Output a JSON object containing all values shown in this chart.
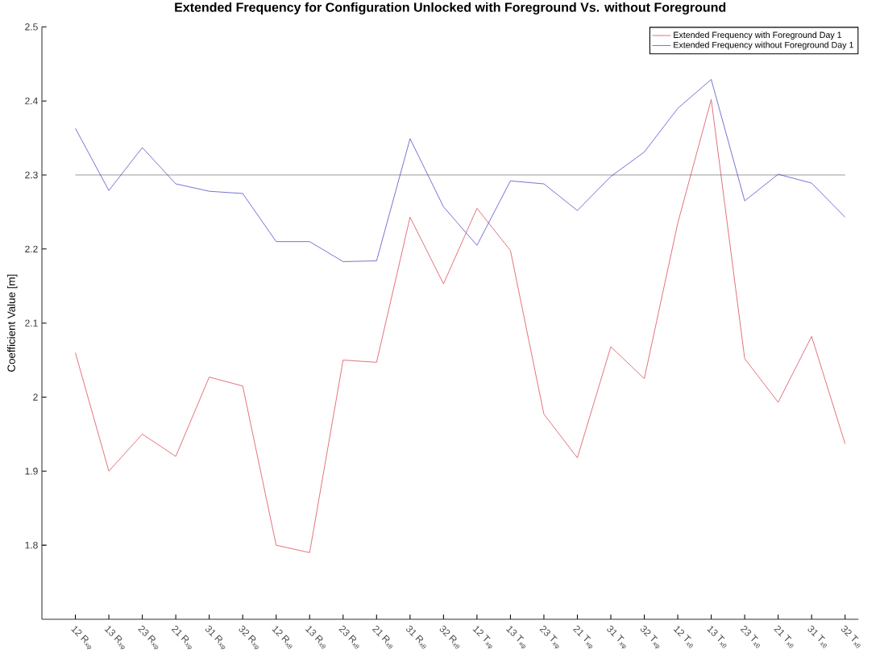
{
  "chart_data": {
    "type": "line",
    "title": "Extended Frequency for Configuration Unlocked with Foreground Vs. without Foreground",
    "ylabel": "Coefficient Value [m]",
    "categories": [
      "12 R$_{xφ}$",
      "13 R$_{xφ}$",
      "23 R$_{xφ}$",
      "21 R$_{xφ}$",
      "31 R$_{xφ}$",
      "32 R$_{xφ}$",
      "12 R$_{xθ}$",
      "13 R$_{xθ}$",
      "23 R$_{xθ}$",
      "21 R$_{xθ}$",
      "31 R$_{xθ}$",
      "32 R$_{xθ}$",
      "12 T$_{xφ}$",
      "13 T$_{xφ}$",
      "23 T$_{xφ}$",
      "21 T$_{xφ}$",
      "31 T$_{xφ}$",
      "32 T$_{xφ}$",
      "12 T$_{xθ}$",
      "13 T$_{xθ}$",
      "23 T$_{xθ}$",
      "21 T$_{xθ}$",
      "31 T$_{xθ}$",
      "32 T$_{xθ}$"
    ],
    "series": [
      {
        "name": "Extended Frequency with Foreground Day 1",
        "color": "#d9505c",
        "values": [
          2.06,
          1.9,
          1.95,
          1.92,
          2.027,
          2.015,
          1.8,
          1.79,
          2.05,
          2.047,
          2.243,
          2.153,
          2.255,
          2.198,
          1.977,
          1.918,
          2.068,
          2.025,
          2.235,
          2.402,
          2.052,
          1.993,
          2.082,
          1.937
        ]
      },
      {
        "name": "Extended Frequency without Foreground Day 1",
        "color": "#5050c8",
        "values": [
          2.363,
          2.279,
          2.337,
          2.288,
          2.278,
          2.275,
          2.21,
          2.21,
          2.183,
          2.184,
          2.349,
          2.257,
          2.205,
          2.292,
          2.288,
          2.252,
          2.298,
          2.331,
          2.39,
          2.429,
          2.265,
          2.301,
          2.289,
          2.243
        ]
      }
    ],
    "ylim": [
      1.7,
      2.5
    ],
    "yticks": [
      1.8,
      1.9,
      2,
      2.1,
      2.2,
      2.3,
      2.4,
      2.5
    ],
    "ref_lines": [
      {
        "axis": "y",
        "value": 2.3,
        "color": "#404040"
      }
    ],
    "legend": "top right",
    "grid": false
  }
}
